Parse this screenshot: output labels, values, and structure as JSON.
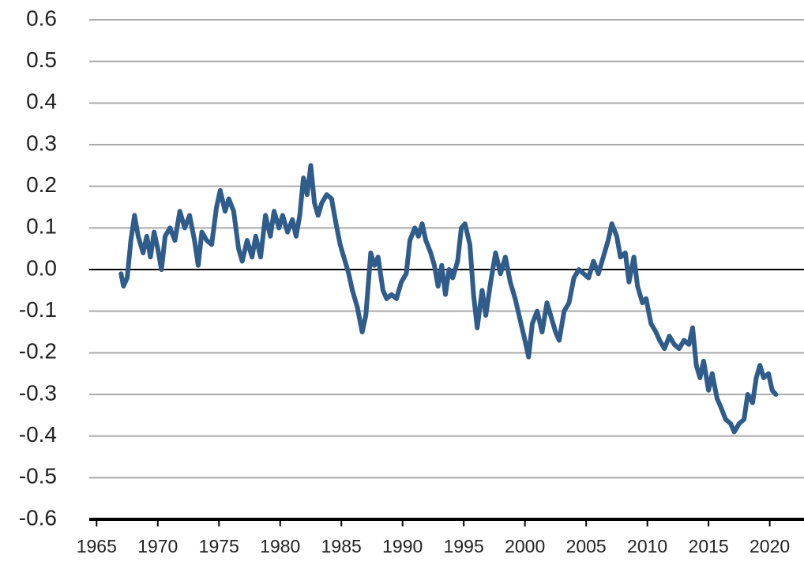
{
  "chart_data": {
    "type": "line",
    "color": "#2f5c8a",
    "grid": true,
    "xlim": [
      1964.4,
      2022.8
    ],
    "ylim": [
      -0.6,
      0.6
    ],
    "xticks": [
      1965,
      1970,
      1975,
      1980,
      1985,
      1990,
      1995,
      2000,
      2005,
      2010,
      2015,
      2020
    ],
    "yticks": [
      0.6,
      0.5,
      0.4,
      0.3,
      0.2,
      0.1,
      {
        "value": 0,
        "label": "0.0"
      },
      -0.1,
      -0.2,
      -0.3,
      -0.4,
      -0.5,
      -0.6
    ],
    "x": [
      1967.0,
      1967.2,
      1967.5,
      1967.8,
      1968.1,
      1968.4,
      1968.8,
      1969.1,
      1969.4,
      1969.7,
      1970.0,
      1970.3,
      1970.6,
      1971.0,
      1971.4,
      1971.8,
      1972.2,
      1972.6,
      1973.0,
      1973.3,
      1973.6,
      1974.0,
      1974.4,
      1974.8,
      1975.1,
      1975.5,
      1975.8,
      1976.2,
      1976.6,
      1976.9,
      1977.3,
      1977.7,
      1978.0,
      1978.4,
      1978.8,
      1979.2,
      1979.5,
      1979.9,
      1980.2,
      1980.6,
      1981.0,
      1981.3,
      1981.6,
      1981.9,
      1982.2,
      1982.5,
      1982.8,
      1983.1,
      1983.4,
      1983.8,
      1984.2,
      1984.5,
      1984.9,
      1985.2,
      1985.6,
      1985.9,
      1986.3,
      1986.7,
      1987.0,
      1987.4,
      1987.7,
      1988.0,
      1988.4,
      1988.7,
      1989.1,
      1989.5,
      1989.9,
      1990.3,
      1990.6,
      1991.0,
      1991.3,
      1991.6,
      1991.9,
      1992.3,
      1992.6,
      1992.9,
      1993.2,
      1993.5,
      1993.8,
      1994.1,
      1994.5,
      1994.8,
      1995.1,
      1995.5,
      1995.8,
      1996.1,
      1996.5,
      1996.8,
      1997.2,
      1997.6,
      1998.0,
      1998.4,
      1998.8,
      1999.2,
      1999.6,
      2000.0,
      2000.3,
      2000.6,
      2001.0,
      2001.4,
      2001.8,
      2002.1,
      2002.5,
      2002.8,
      2003.2,
      2003.6,
      2004.0,
      2004.4,
      2004.8,
      2005.2,
      2005.6,
      2006.0,
      2006.4,
      2006.8,
      2007.1,
      2007.5,
      2007.8,
      2008.2,
      2008.5,
      2008.9,
      2009.2,
      2009.6,
      2009.9,
      2010.3,
      2010.7,
      2011.0,
      2011.4,
      2011.8,
      2012.2,
      2012.6,
      2013.0,
      2013.4,
      2013.7,
      2014.0,
      2014.3,
      2014.6,
      2015.0,
      2015.3,
      2015.7,
      2016.0,
      2016.4,
      2016.8,
      2017.1,
      2017.5,
      2017.9,
      2018.2,
      2018.6,
      2018.9,
      2019.2,
      2019.5,
      2019.9,
      2020.2,
      2020.5
    ],
    "values": [
      -0.01,
      -0.04,
      -0.02,
      0.07,
      0.13,
      0.08,
      0.04,
      0.08,
      0.03,
      0.09,
      0.05,
      0.0,
      0.08,
      0.1,
      0.07,
      0.14,
      0.1,
      0.13,
      0.07,
      0.01,
      0.09,
      0.07,
      0.06,
      0.15,
      0.19,
      0.14,
      0.17,
      0.14,
      0.05,
      0.02,
      0.07,
      0.03,
      0.08,
      0.03,
      0.13,
      0.08,
      0.14,
      0.1,
      0.13,
      0.09,
      0.12,
      0.08,
      0.13,
      0.22,
      0.18,
      0.25,
      0.16,
      0.13,
      0.16,
      0.18,
      0.17,
      0.12,
      0.06,
      0.03,
      -0.01,
      -0.05,
      -0.09,
      -0.15,
      -0.11,
      0.04,
      0.01,
      0.03,
      -0.05,
      -0.07,
      -0.06,
      -0.07,
      -0.03,
      -0.01,
      0.07,
      0.1,
      0.08,
      0.11,
      0.07,
      0.04,
      0.01,
      -0.04,
      0.01,
      -0.06,
      0.0,
      -0.02,
      0.02,
      0.1,
      0.11,
      0.06,
      -0.06,
      -0.14,
      -0.05,
      -0.11,
      -0.03,
      0.04,
      -0.01,
      0.03,
      -0.03,
      -0.07,
      -0.12,
      -0.17,
      -0.21,
      -0.13,
      -0.1,
      -0.15,
      -0.08,
      -0.11,
      -0.15,
      -0.17,
      -0.1,
      -0.08,
      -0.02,
      0.0,
      -0.01,
      -0.02,
      0.02,
      -0.01,
      0.03,
      0.07,
      0.11,
      0.08,
      0.03,
      0.04,
      -0.03,
      0.03,
      -0.04,
      -0.08,
      -0.07,
      -0.13,
      -0.15,
      -0.17,
      -0.19,
      -0.16,
      -0.18,
      -0.19,
      -0.17,
      -0.18,
      -0.14,
      -0.23,
      -0.26,
      -0.22,
      -0.29,
      -0.25,
      -0.31,
      -0.33,
      -0.36,
      -0.37,
      -0.39,
      -0.37,
      -0.36,
      -0.3,
      -0.32,
      -0.26,
      -0.23,
      -0.26,
      -0.25,
      -0.29,
      -0.3
    ]
  }
}
